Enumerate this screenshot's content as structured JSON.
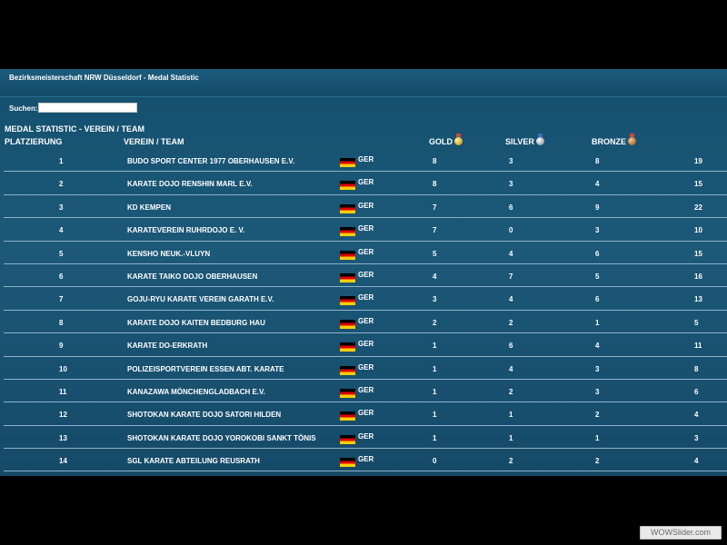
{
  "page": {
    "header_title": "Bezirksmeisterschaft NRW Düsseldorf - Medal Statistic",
    "search_label": "Suchen:",
    "search_value": "",
    "section_title": "MEDAL STATISTIC - VEREIN / TEAM"
  },
  "columns": {
    "rank": "PLATZIERUNG",
    "team": "VEREIN / TEAM",
    "gold": "GOLD",
    "silver": "SILVER",
    "bronze": "BRONZE"
  },
  "icons": {
    "gold": "gold-medal-icon",
    "silver": "silver-medal-icon",
    "bronze": "bronze-medal-icon",
    "flag": "germany-flag-icon"
  },
  "colors": {
    "panel": "#1a5676",
    "row_border": "#8fb3c8"
  },
  "rows": [
    {
      "rank": "1",
      "team": "BUDO SPORT CENTER 1977 OBERHAUSEN E.V.",
      "nat": "GER",
      "gold": "8",
      "silver": "3",
      "bronze": "8",
      "total": "19"
    },
    {
      "rank": "2",
      "team": "KARATE DOJO RENSHIN MARL E.V.",
      "nat": "GER",
      "gold": "8",
      "silver": "3",
      "bronze": "4",
      "total": "15"
    },
    {
      "rank": "3",
      "team": "KD KEMPEN",
      "nat": "GER",
      "gold": "7",
      "silver": "6",
      "bronze": "9",
      "total": "22"
    },
    {
      "rank": "4",
      "team": "KARATEVEREIN RUHRDOJO E. V.",
      "nat": "GER",
      "gold": "7",
      "silver": "0",
      "bronze": "3",
      "total": "10"
    },
    {
      "rank": "5",
      "team": "KENSHO NEUK.-VLUYN",
      "nat": "GER",
      "gold": "5",
      "silver": "4",
      "bronze": "6",
      "total": "15"
    },
    {
      "rank": "6",
      "team": "KARATE TAIKO DOJO OBERHAUSEN",
      "nat": "GER",
      "gold": "4",
      "silver": "7",
      "bronze": "5",
      "total": "16"
    },
    {
      "rank": "7",
      "team": "GOJU-RYU KARATE VEREIN GARATH E.V.",
      "nat": "GER",
      "gold": "3",
      "silver": "4",
      "bronze": "6",
      "total": "13"
    },
    {
      "rank": "8",
      "team": "KARATE DOJO KAITEN BEDBURG HAU",
      "nat": "GER",
      "gold": "2",
      "silver": "2",
      "bronze": "1",
      "total": "5"
    },
    {
      "rank": "9",
      "team": "KARATE DO-ERKRATH",
      "nat": "GER",
      "gold": "1",
      "silver": "6",
      "bronze": "4",
      "total": "11"
    },
    {
      "rank": "10",
      "team": "POLIZEISPORTVEREIN ESSEN ABT. KARATE",
      "nat": "GER",
      "gold": "1",
      "silver": "4",
      "bronze": "3",
      "total": "8"
    },
    {
      "rank": "11",
      "team": "KANAZAWA MÖNCHENGLADBACH E.V.",
      "nat": "GER",
      "gold": "1",
      "silver": "2",
      "bronze": "3",
      "total": "6"
    },
    {
      "rank": "12",
      "team": "SHOTOKAN KARATE DOJO SATORI HILDEN",
      "nat": "GER",
      "gold": "1",
      "silver": "1",
      "bronze": "2",
      "total": "4"
    },
    {
      "rank": "13",
      "team": "SHOTOKAN KARATE DOJO YOROKOBI SANKT TÖNIS",
      "nat": "GER",
      "gold": "1",
      "silver": "1",
      "bronze": "1",
      "total": "3"
    },
    {
      "rank": "14",
      "team": "SGL KARATE ABTEILUNG REUSRATH",
      "nat": "GER",
      "gold": "0",
      "silver": "2",
      "bronze": "2",
      "total": "4"
    }
  ],
  "watermark": "WOWSlider.com"
}
